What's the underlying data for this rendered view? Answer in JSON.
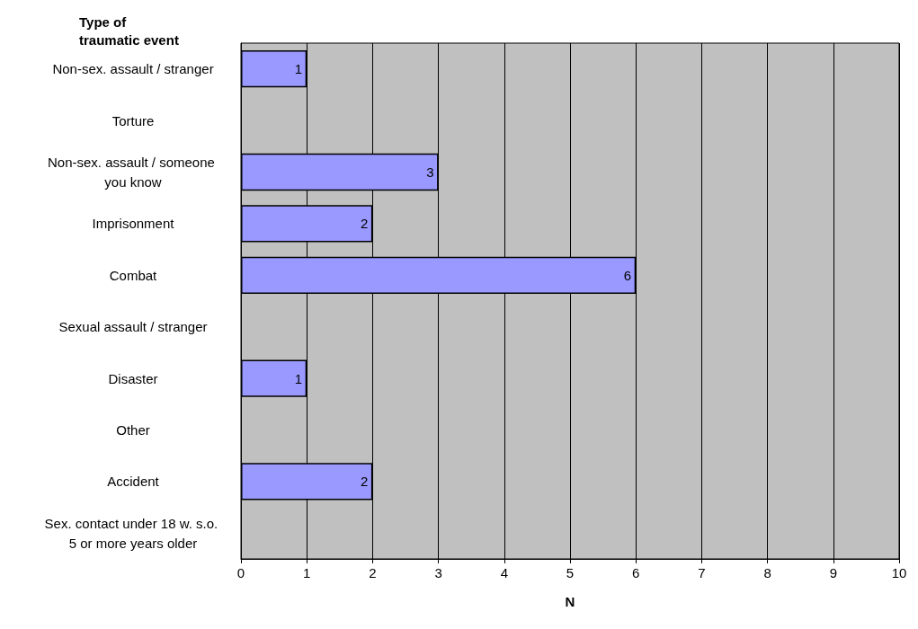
{
  "chart_data": {
    "type": "bar",
    "orientation": "horizontal",
    "ylabel": "Type of traumatic event",
    "xlabel": "N",
    "categories": [
      "Non-sex. assault / stranger",
      "Torture",
      "Non-sex. assault / someone you know",
      "Imprisonment",
      "Combat",
      "Sexual assault / stranger",
      "Disaster",
      "Other",
      "Accident",
      "Sex. contact under 18 w. s.o. 5 or more years older"
    ],
    "values": [
      1,
      null,
      3,
      2,
      6,
      null,
      1,
      null,
      2,
      null
    ],
    "color": "#9999ff",
    "xlim": [
      0,
      10
    ],
    "xticks": [
      0,
      1,
      2,
      3,
      4,
      5,
      6,
      7,
      8,
      9,
      10
    ],
    "grid": "x",
    "data_labels": true
  }
}
